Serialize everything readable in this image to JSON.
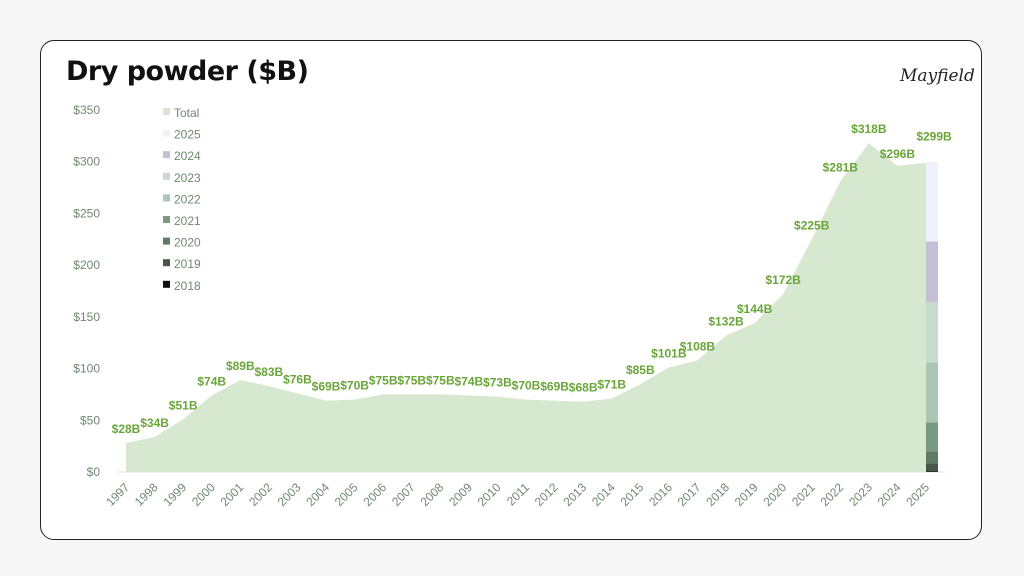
{
  "title": "Dry powder ($B)",
  "logo": "Mayfield",
  "chart_data": {
    "type": "area",
    "title": "Dry powder ($B)",
    "x": [
      1997,
      1998,
      1999,
      2000,
      2001,
      2002,
      2003,
      2004,
      2005,
      2006,
      2007,
      2008,
      2009,
      2010,
      2011,
      2012,
      2013,
      2014,
      2015,
      2016,
      2017,
      2018,
      2019,
      2020,
      2021,
      2022,
      2023,
      2024,
      2025
    ],
    "series": [
      {
        "name": "Total",
        "color": "#d6e9d0",
        "values": [
          28,
          34,
          51,
          74,
          89,
          83,
          76,
          69,
          70,
          75,
          75,
          75,
          74,
          73,
          70,
          69,
          68,
          71,
          85,
          101,
          108,
          132,
          144,
          172,
          225,
          281,
          318,
          296,
          299
        ]
      }
    ],
    "data_labels": [
      "$28B",
      "$34B",
      "$51B",
      "$74B",
      "$89B",
      "$83B",
      "$76B",
      "$69B",
      "$70B",
      "$75B",
      "$75B",
      "$75B",
      "$74B",
      "$73B",
      "$70B",
      "$69B",
      "$68B",
      "$71B",
      "$85B",
      "$101B",
      "$108B",
      "$132B",
      "$144B",
      "$172B",
      "$225B",
      "$281B",
      "$318B",
      "$296B",
      "$299B"
    ],
    "stacked_bar_2025": [
      {
        "name": "2018",
        "value": 0.5,
        "color": "#111111"
      },
      {
        "name": "2019",
        "value": 8,
        "color": "#46574a"
      },
      {
        "name": "2020",
        "value": 11.5,
        "color": "#607a64"
      },
      {
        "name": "2021",
        "value": 28,
        "color": "#7a9a80"
      },
      {
        "name": "2022",
        "value": 58,
        "color": "#abc6b2"
      },
      {
        "name": "2023",
        "value": 58,
        "color": "#c7dccd"
      },
      {
        "name": "2024",
        "value": 59,
        "color": "#c2bfd6"
      },
      {
        "name": "2025",
        "value": 77,
        "color": "#f1f1fb"
      }
    ],
    "legend": [
      "Total",
      "2025",
      "2024",
      "2023",
      "2022",
      "2021",
      "2020",
      "2019",
      "2018"
    ],
    "legend_placement": "top-left",
    "yticks": [
      "$0",
      "$50",
      "$100",
      "$150",
      "$200",
      "$250",
      "$300",
      "$350"
    ],
    "ylim": [
      0,
      350
    ],
    "grid": false,
    "label_color": "#6aa53a"
  }
}
